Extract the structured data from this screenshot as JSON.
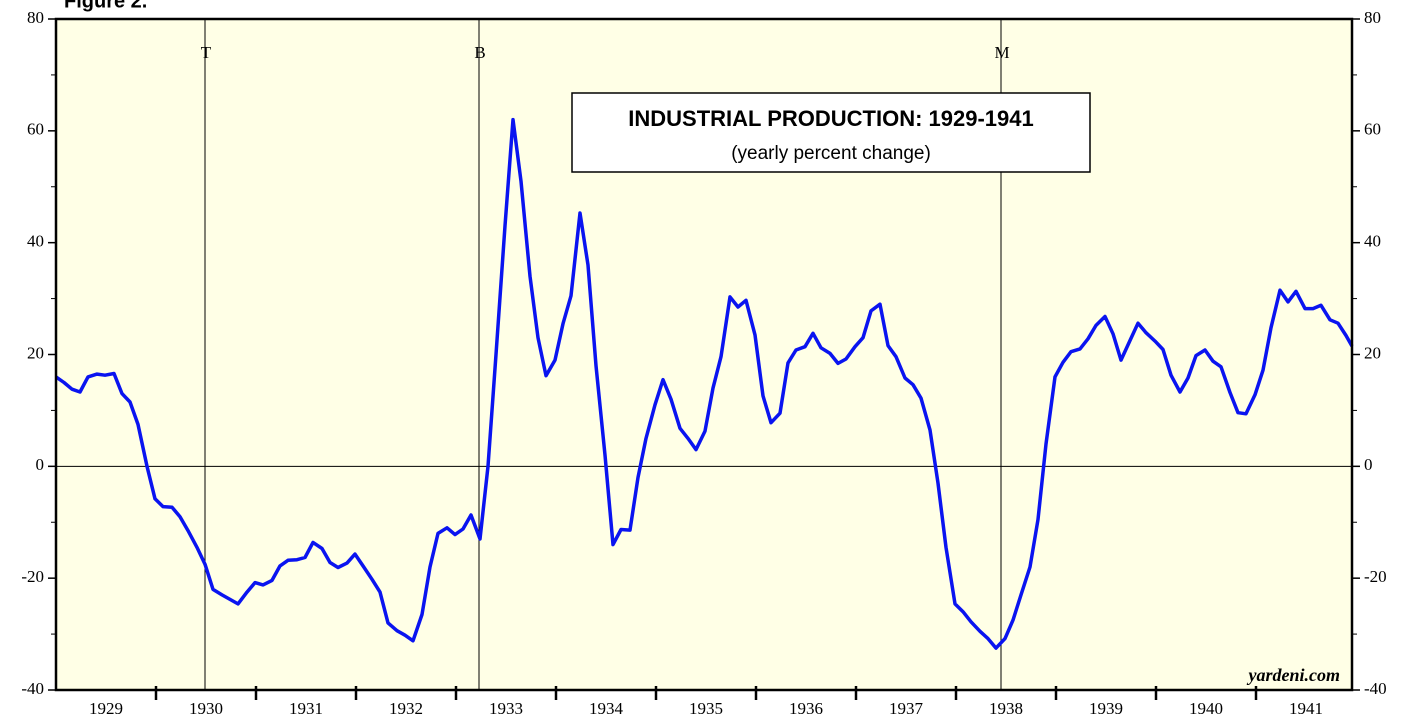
{
  "figure_label": "Figure 2.",
  "chart_data": {
    "type": "line",
    "title": "INDUSTRIAL PRODUCTION: 1929-1941",
    "subtitle": "(yearly percent change)",
    "source": "yardeni.com",
    "xlim": [
      1929,
      1941.96
    ],
    "ylim": [
      -40,
      80
    ],
    "yticks": [
      -40,
      -20,
      0,
      20,
      40,
      60,
      80
    ],
    "yminor_ticks": [
      -30,
      -10,
      10,
      30,
      50,
      70
    ],
    "xticks": [
      {
        "value": 1929.5,
        "label": "1929"
      },
      {
        "value": 1930.5,
        "label": "1930"
      },
      {
        "value": 1931.5,
        "label": "1931"
      },
      {
        "value": 1932.5,
        "label": "1932"
      },
      {
        "value": 1933.5,
        "label": "1933"
      },
      {
        "value": 1934.5,
        "label": "1934"
      },
      {
        "value": 1935.5,
        "label": "1935"
      },
      {
        "value": 1936.5,
        "label": "1936"
      },
      {
        "value": 1937.5,
        "label": "1937"
      },
      {
        "value": 1938.5,
        "label": "1938"
      },
      {
        "value": 1939.5,
        "label": "1939"
      },
      {
        "value": 1940.5,
        "label": "1940"
      },
      {
        "value": 1941.5,
        "label": "1941"
      }
    ],
    "xminor_ticks": [
      1930,
      1931,
      1932,
      1933,
      1934,
      1935,
      1936,
      1937,
      1938,
      1939,
      1940,
      1941
    ],
    "events": [
      {
        "label": "T",
        "x": 1930.49
      },
      {
        "label": "B",
        "x": 1933.23
      },
      {
        "label": "M",
        "x": 1938.45
      }
    ],
    "zero_line": 0,
    "background": "#ffffe6",
    "series": [
      {
        "name": "Industrial production",
        "color": "#0a14f0",
        "x": [
          1929.0,
          1929.08,
          1929.16,
          1929.24,
          1929.32,
          1929.41,
          1929.49,
          1929.58,
          1929.66,
          1929.74,
          1929.82,
          1929.91,
          1929.99,
          1930.07,
          1930.16,
          1930.24,
          1930.32,
          1930.41,
          1930.49,
          1930.57,
          1930.66,
          1930.74,
          1930.82,
          1930.91,
          1930.99,
          1931.07,
          1931.16,
          1931.24,
          1931.32,
          1931.41,
          1931.49,
          1931.57,
          1931.66,
          1931.74,
          1931.82,
          1931.91,
          1931.99,
          1932.07,
          1932.16,
          1932.24,
          1932.32,
          1932.41,
          1932.49,
          1932.57,
          1932.66,
          1932.74,
          1932.82,
          1932.91,
          1932.99,
          1933.07,
          1933.15,
          1933.24,
          1933.32,
          1933.4,
          1933.49,
          1933.57,
          1933.65,
          1933.74,
          1933.82,
          1933.9,
          1933.99,
          1934.07,
          1934.15,
          1934.24,
          1934.32,
          1934.4,
          1934.49,
          1934.57,
          1934.65,
          1934.74,
          1934.82,
          1934.9,
          1934.99,
          1935.07,
          1935.15,
          1935.24,
          1935.32,
          1935.4,
          1935.49,
          1935.57,
          1935.65,
          1935.74,
          1935.82,
          1935.9,
          1935.99,
          1936.07,
          1936.15,
          1936.24,
          1936.32,
          1936.4,
          1936.49,
          1936.57,
          1936.65,
          1936.74,
          1936.82,
          1936.9,
          1936.99,
          1937.07,
          1937.15,
          1937.24,
          1937.32,
          1937.4,
          1937.49,
          1937.57,
          1937.65,
          1937.74,
          1937.82,
          1937.9,
          1937.99,
          1938.07,
          1938.15,
          1938.24,
          1938.32,
          1938.4,
          1938.49,
          1938.57,
          1938.65,
          1938.74,
          1938.82,
          1938.9,
          1938.99,
          1939.07,
          1939.15,
          1939.24,
          1939.32,
          1939.4,
          1939.49,
          1939.57,
          1939.65,
          1939.74,
          1939.82,
          1939.9,
          1939.99,
          1940.07,
          1940.15,
          1940.24,
          1940.32,
          1940.4,
          1940.49,
          1940.57,
          1940.65,
          1940.74,
          1940.82,
          1940.9,
          1940.99,
          1941.07,
          1941.15,
          1941.24,
          1941.32,
          1941.4,
          1941.49,
          1941.57,
          1941.65,
          1941.74,
          1941.82,
          1941.9,
          1941.96
        ],
        "values": [
          16,
          15,
          13.8,
          13.3,
          16,
          16.5,
          16.3,
          16.6,
          13,
          11.5,
          7.5,
          0,
          -5.8,
          -7.2,
          -7.3,
          -9,
          -11.5,
          -14.5,
          -17.5,
          -22,
          -23,
          -23.8,
          -24.6,
          -22.5,
          -20.8,
          -21.2,
          -20.4,
          -17.8,
          -16.8,
          -16.7,
          -16.3,
          -13.6,
          -14.7,
          -17.2,
          -18.1,
          -17.3,
          -15.7,
          -17.8,
          -20.2,
          -22.5,
          -28,
          -29.4,
          -30.2,
          -31.2,
          -26.5,
          -18,
          -12,
          -11,
          -12.2,
          -11.2,
          -8.7,
          -13,
          0,
          20,
          43,
          62,
          51,
          34,
          23,
          16.2,
          19,
          25.5,
          30.5,
          45.3,
          36,
          18,
          2,
          -14,
          -11.3,
          -11.4,
          -2,
          5,
          11,
          15.5,
          12,
          6.8,
          5,
          3,
          6.3,
          14,
          19.6,
          30.3,
          28.5,
          29.7,
          23.5,
          12.6,
          7.8,
          9.5,
          18.5,
          20.8,
          21.4,
          23.8,
          21.2,
          20.2,
          18.4,
          19.2,
          21.4,
          23,
          27.8,
          29,
          21.6,
          19.6,
          15.8,
          14.6,
          12.2,
          6.5,
          -3,
          -14.5,
          -24.6,
          -26,
          -27.8,
          -29.5,
          -30.8,
          -32.5,
          -30.8,
          -27.5,
          -23,
          -18,
          -9.5,
          4,
          16,
          18.6,
          20.5,
          21,
          22.8,
          25.2,
          26.8,
          23.7,
          19,
          22.5,
          25.6,
          23.9,
          22.4,
          20.9,
          16.3,
          13.3,
          15.8,
          19.8,
          20.8,
          18.8,
          17.8,
          13.2,
          9.6,
          9.4,
          12.8,
          17.2,
          24.8,
          31.5,
          29.4,
          31.3,
          28.2,
          28.2,
          28.8,
          26.2,
          25.6,
          23.4,
          21.5
        ]
      }
    ]
  }
}
